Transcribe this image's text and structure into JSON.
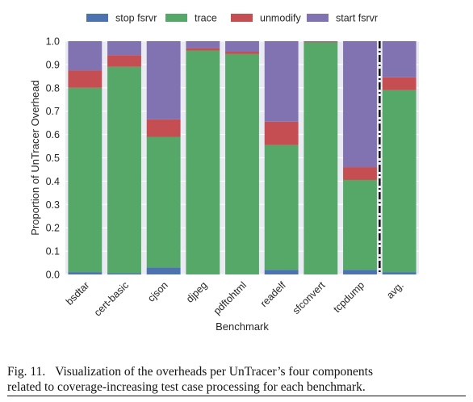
{
  "chart_data": {
    "type": "bar",
    "stacked": true,
    "title": "",
    "xlabel": "Benchmark",
    "ylabel": "Proportion of UnTracer Overhead",
    "ylim": [
      0,
      1.0
    ],
    "yticks": [
      "0.0",
      "0.1",
      "0.2",
      "0.3",
      "0.4",
      "0.5",
      "0.6",
      "0.7",
      "0.8",
      "0.9",
      "1.0"
    ],
    "legend_position": "top",
    "categories": [
      "bsdtar",
      "cert-basic",
      "cjson",
      "djpeg",
      "pdftohtml",
      "readelf",
      "sfconvert",
      "tcpdump",
      "avg."
    ],
    "separator_after_index": 7,
    "series": [
      {
        "name": "stop fsrvr",
        "color": "#4c72b0",
        "values": [
          0.01,
          0.005,
          0.03,
          0.0,
          0.0,
          0.02,
          0.0,
          0.02,
          0.01
        ]
      },
      {
        "name": "trace",
        "color": "#55a868",
        "values": [
          0.79,
          0.885,
          0.56,
          0.96,
          0.945,
          0.535,
          0.995,
          0.385,
          0.78
        ]
      },
      {
        "name": "unmodify",
        "color": "#c44e52",
        "values": [
          0.075,
          0.05,
          0.075,
          0.01,
          0.01,
          0.1,
          0.003,
          0.055,
          0.055
        ]
      },
      {
        "name": "start fsrvr",
        "color": "#8172b2",
        "values": [
          0.125,
          0.06,
          0.335,
          0.03,
          0.045,
          0.345,
          0.002,
          0.54,
          0.155
        ]
      }
    ]
  },
  "caption": {
    "number": "Fig. 11.",
    "line1": "Visualization of the overheads per UnTracer’s four components",
    "line2": "related to coverage-increasing test case processing for each benchmark."
  }
}
